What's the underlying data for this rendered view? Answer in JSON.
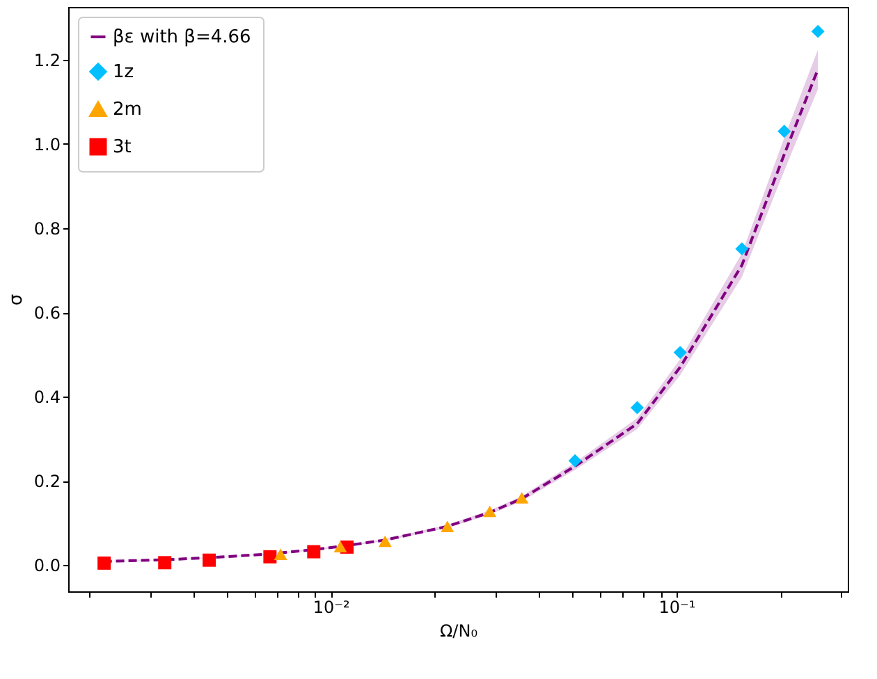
{
  "chart_data": {
    "type": "scatter",
    "xlabel": "Ω/N₀",
    "ylabel": "σ",
    "log": "x",
    "grid": false,
    "legend": "top left",
    "xlim": [
      0.00174,
      0.313
    ],
    "ylim": [
      -0.062,
      1.325
    ],
    "xticks": [
      {
        "value": 0.002,
        "label": null
      },
      {
        "value": 0.003,
        "label": null
      },
      {
        "value": 0.004,
        "label": null
      },
      {
        "value": 0.005,
        "label": null
      },
      {
        "value": 0.006,
        "label": null
      },
      {
        "value": 0.007,
        "label": null
      },
      {
        "value": 0.008,
        "label": null
      },
      {
        "value": 0.009,
        "label": null
      },
      {
        "value": 0.01,
        "label": "10⁻²"
      },
      {
        "value": 0.02,
        "label": null
      },
      {
        "value": 0.03,
        "label": null
      },
      {
        "value": 0.04,
        "label": null
      },
      {
        "value": 0.05,
        "label": null
      },
      {
        "value": 0.06,
        "label": null
      },
      {
        "value": 0.07,
        "label": null
      },
      {
        "value": 0.08,
        "label": null
      },
      {
        "value": 0.09,
        "label": null
      },
      {
        "value": 0.1,
        "label": "10⁻¹"
      },
      {
        "value": 0.2,
        "label": null
      },
      {
        "value": 0.3,
        "label": null
      }
    ],
    "yticks": [
      {
        "value": 0,
        "label": "0.0"
      },
      0.2,
      0.4,
      0.6,
      0.8,
      {
        "value": 1,
        "label": "1.0"
      },
      1.2
    ],
    "series": [
      {
        "name": "βε with β=4.66",
        "type": "line",
        "color": "#800080",
        "marker": "none",
        "line_style": "dashed",
        "x": [
          0.0022,
          0.0033,
          0.0045,
          0.0067,
          0.0089,
          0.011,
          0.0144,
          0.0217,
          0.0288,
          0.0357,
          0.0509,
          0.077,
          0.1025,
          0.1546,
          0.205,
          0.2566
        ],
        "values": [
          0.009,
          0.013,
          0.018,
          0.027,
          0.037,
          0.046,
          0.06,
          0.092,
          0.125,
          0.158,
          0.235,
          0.336,
          0.47,
          0.712,
          0.975,
          1.177
        ],
        "lower": [
          0.0086,
          0.0125,
          0.0173,
          0.0259,
          0.0355,
          0.0442,
          0.0576,
          0.0883,
          0.12,
          0.152,
          0.226,
          0.323,
          0.451,
          0.684,
          0.936,
          1.13
        ],
        "upper": [
          0.0094,
          0.0135,
          0.0187,
          0.0281,
          0.0385,
          0.0478,
          0.0624,
          0.0957,
          0.13,
          0.164,
          0.244,
          0.349,
          0.489,
          0.74,
          1.014,
          1.224
        ]
      },
      {
        "name": "1z",
        "color": "#00bfff",
        "marker": "diamond",
        "x": [
          0.0509,
          0.077,
          0.1025,
          0.1546,
          0.205,
          0.2566
        ],
        "values": [
          0.248,
          0.374,
          0.505,
          0.751,
          1.03,
          1.267
        ]
      },
      {
        "name": "2m",
        "color": "#ffa500",
        "marker": "triangle",
        "x": [
          0.00716,
          0.01066,
          0.01436,
          0.02174,
          0.02884,
          0.0357
        ],
        "values": [
          0.026,
          0.044,
          0.057,
          0.092,
          0.128,
          0.16
        ]
      },
      {
        "name": "3t",
        "color": "#ff0000",
        "marker": "square",
        "x": [
          0.00221,
          0.00331,
          0.00445,
          0.00667,
          0.00893,
          0.01114
        ],
        "values": [
          0.005,
          0.006,
          0.012,
          0.02,
          0.032,
          0.043
        ]
      }
    ]
  }
}
